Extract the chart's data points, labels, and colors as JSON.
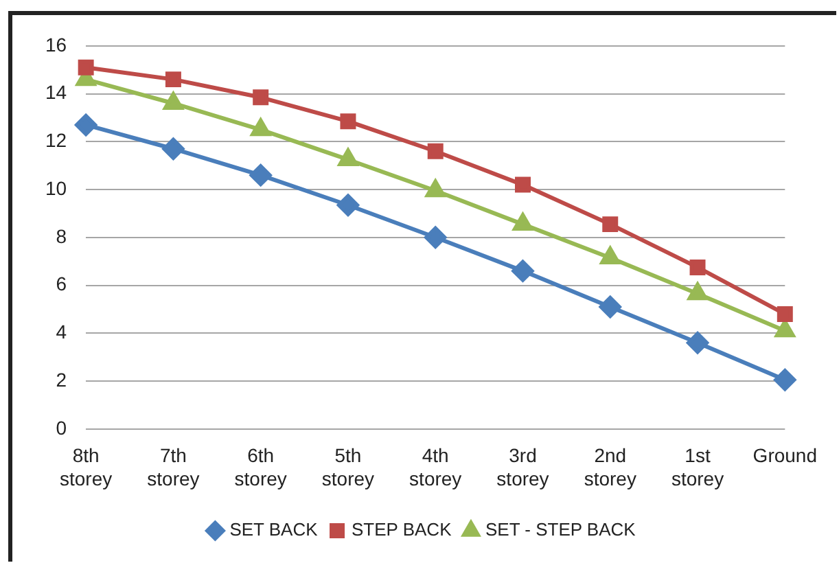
{
  "chart_data": {
    "type": "line",
    "categories": [
      "8th storey",
      "7th storey",
      "6th storey",
      "5th storey",
      "4th storey",
      "3rd storey",
      "2nd storey",
      "1st storey",
      "Ground"
    ],
    "series": [
      {
        "name": "SET BACK",
        "color": "#4a7ebb",
        "marker": "diamond",
        "values": [
          12.7,
          11.7,
          10.6,
          9.35,
          8.0,
          6.6,
          5.1,
          3.6,
          2.05
        ]
      },
      {
        "name": "STEP BACK",
        "color": "#be4b48",
        "marker": "square",
        "values": [
          15.1,
          14.6,
          13.85,
          12.85,
          11.6,
          10.2,
          8.55,
          6.75,
          4.8
        ]
      },
      {
        "name": "SET - STEP BACK",
        "color": "#98b954",
        "marker": "triangle",
        "values": [
          14.6,
          13.6,
          12.5,
          11.25,
          9.95,
          8.55,
          7.15,
          5.65,
          4.1
        ]
      }
    ],
    "ylim": [
      0,
      16
    ],
    "yticks": [
      0,
      2,
      4,
      6,
      8,
      10,
      12,
      14,
      16
    ],
    "grid": "y",
    "legend": "bottom",
    "line_style": "solid"
  }
}
